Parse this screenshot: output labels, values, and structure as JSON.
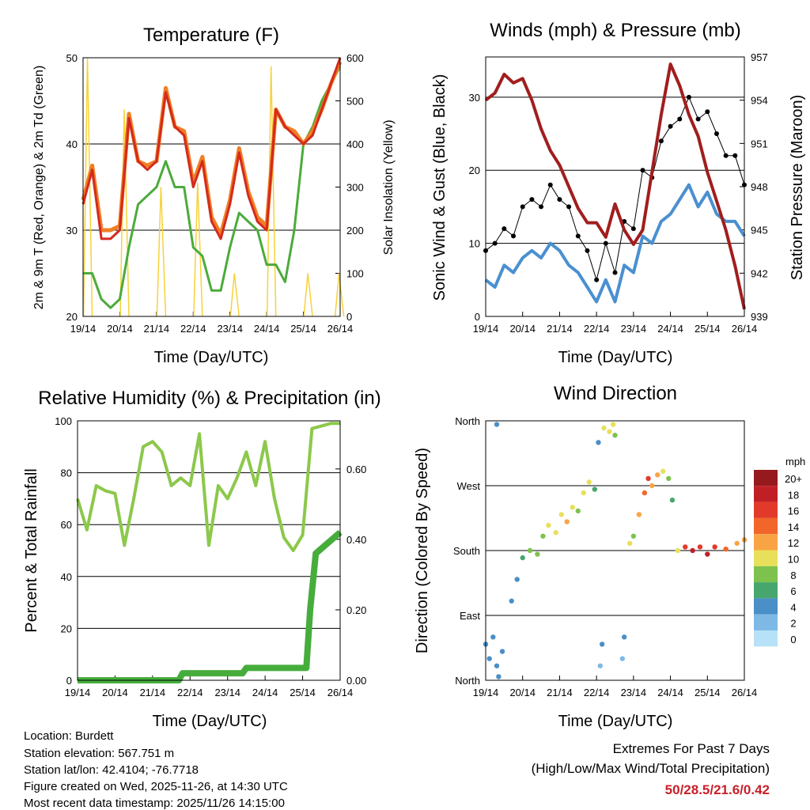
{
  "colors": {
    "temp2m": "#d42a1e",
    "temp9m": "#f07f24",
    "dewpoint": "#4bab3a",
    "solar": "#f7d23a",
    "sonic": "#4a90d0",
    "gust": "#000000",
    "pressure": "#a01e1e",
    "rh": "#8cc84b",
    "precip": "#46ad3c"
  },
  "x_ticks": [
    "19/14",
    "20/14",
    "21/14",
    "22/14",
    "23/14",
    "24/14",
    "25/14",
    "26/14"
  ],
  "chart_data": [
    {
      "id": "temperature",
      "type": "line",
      "title": "Temperature (F)",
      "xlabel": "Time (Day/UTC)",
      "ylabel": "2m & 9m T (Red, Orange) & 2m Td (Green)",
      "ylabel_right": "Solar Insolation (Yellow)",
      "xlim": [
        0,
        7
      ],
      "ylim": [
        20,
        50
      ],
      "ylim_right": [
        0,
        600
      ],
      "yticks": [
        20,
        30,
        40,
        50
      ],
      "yticks_right": [
        0,
        100,
        200,
        300,
        400,
        500,
        600
      ],
      "x": [
        0,
        0.25,
        0.5,
        0.75,
        1,
        1.25,
        1.5,
        1.75,
        2,
        2.25,
        2.5,
        2.75,
        3,
        3.25,
        3.5,
        3.75,
        4,
        4.25,
        4.5,
        4.75,
        5,
        5.25,
        5.5,
        5.75,
        6,
        6.25,
        6.5,
        6.75,
        7
      ],
      "series": [
        {
          "name": "2m T",
          "color_key": "temp2m",
          "values": [
            33,
            37,
            29,
            29,
            30,
            43,
            38,
            37,
            38,
            46,
            42,
            41,
            35,
            38,
            31,
            29,
            33,
            39,
            34,
            31,
            30,
            44,
            42,
            41,
            40,
            41,
            44,
            47,
            50
          ]
        },
        {
          "name": "9m T",
          "color_key": "temp9m",
          "values": [
            33.5,
            37.5,
            30,
            30,
            30.5,
            43.5,
            38,
            37.5,
            38,
            46.5,
            42,
            41.5,
            35.5,
            38.5,
            31.5,
            29.5,
            33.5,
            39.5,
            34.5,
            31.5,
            30.5,
            44,
            42,
            41.5,
            40,
            41.5,
            44,
            47,
            49.5
          ]
        },
        {
          "name": "2m Td",
          "color_key": "dewpoint",
          "values": [
            25,
            25,
            22,
            21,
            22,
            28,
            33,
            34,
            35,
            38,
            35,
            35,
            28,
            27,
            23,
            23,
            28,
            32,
            31,
            30,
            26,
            26,
            24,
            30,
            40,
            42,
            45,
            47,
            49
          ]
        }
      ],
      "solar_peaks": [
        {
          "day": 0.12,
          "value": 600
        },
        {
          "day": 1.12,
          "value": 480
        },
        {
          "day": 2.12,
          "value": 300
        },
        {
          "day": 3.12,
          "value": 310
        },
        {
          "day": 4.12,
          "value": 100
        },
        {
          "day": 5.12,
          "value": 580
        },
        {
          "day": 6.12,
          "value": 100
        },
        {
          "day": 6.97,
          "value": 100
        }
      ]
    },
    {
      "id": "winds",
      "type": "scatter",
      "title": "Winds (mph) & Pressure (mb)",
      "xlabel": "Time (Day/UTC)",
      "ylabel": "Sonic Wind & Gust (Blue, Black)",
      "ylabel_right": "Station Pressure (Maroon)",
      "xlim": [
        0,
        7
      ],
      "ylim": [
        0,
        35.5
      ],
      "ylim_right": [
        939,
        957
      ],
      "yticks": [
        0,
        10,
        20,
        30
      ],
      "yticks_right": [
        939,
        942,
        945,
        948,
        951,
        954,
        957
      ],
      "x": [
        0,
        0.25,
        0.5,
        0.75,
        1,
        1.25,
        1.5,
        1.75,
        2,
        2.25,
        2.5,
        2.75,
        3,
        3.25,
        3.5,
        3.75,
        4,
        4.25,
        4.5,
        4.75,
        5,
        5.25,
        5.5,
        5.75,
        6,
        6.25,
        6.5,
        6.75,
        7
      ],
      "series": [
        {
          "name": "Sonic Wind",
          "color_key": "sonic",
          "values": [
            5,
            4,
            7,
            6,
            8,
            9,
            8,
            10,
            9,
            7,
            6,
            4,
            2,
            5,
            2,
            7,
            6,
            11,
            10,
            13,
            14,
            16,
            18,
            15,
            17,
            14,
            13,
            13,
            11
          ]
        },
        {
          "name": "Gust",
          "color_key": "gust",
          "values": [
            9,
            10,
            12,
            11,
            15,
            16,
            15,
            18,
            16,
            15,
            11,
            9,
            5,
            10,
            6,
            13,
            12,
            20,
            19,
            24,
            26,
            27,
            30,
            27,
            28,
            25,
            22,
            22,
            18
          ]
        },
        {
          "name": "Pressure",
          "color_key": "pressure",
          "axis": "right",
          "values": [
            954,
            954.5,
            955.8,
            955.2,
            955.5,
            954,
            952,
            950.5,
            949.5,
            948,
            946.5,
            945.5,
            945.5,
            944.5,
            946.8,
            945,
            944,
            945,
            949,
            953,
            956.5,
            955,
            953,
            951.5,
            949,
            947,
            945,
            942.5,
            939.5
          ]
        }
      ]
    },
    {
      "id": "humidity",
      "type": "line",
      "title": "Relative Humidity (%) & Precipitation (in)",
      "xlabel": "Time (Day/UTC)",
      "ylabel": "Percent & Total Rainfall",
      "xlim": [
        0,
        7
      ],
      "ylim": [
        0,
        100
      ],
      "ylim_right": [
        0,
        0.7366
      ],
      "yticks": [
        0,
        20,
        40,
        60,
        80,
        100
      ],
      "yticks_right": [
        "0.00",
        "0.20",
        "0.40",
        "0.60"
      ],
      "series": [
        {
          "name": "Relative Humidity",
          "color_key": "rh",
          "x": [
            0,
            0.25,
            0.5,
            0.75,
            1,
            1.25,
            1.5,
            1.75,
            2,
            2.25,
            2.5,
            2.75,
            3,
            3.25,
            3.5,
            3.75,
            4,
            4.25,
            4.5,
            4.75,
            5,
            5.25,
            5.5,
            5.75,
            6,
            6.25,
            6.5,
            6.75,
            7
          ],
          "values": [
            70,
            58,
            75,
            73,
            72,
            52,
            70,
            90,
            92,
            88,
            75,
            78,
            75,
            95,
            52,
            75,
            70,
            78,
            88,
            75,
            92,
            70,
            55,
            50,
            56,
            97,
            98,
            99,
            99
          ]
        },
        {
          "name": "Total Precipitation",
          "color_key": "precip",
          "axis": "right",
          "x": [
            0,
            2.7,
            2.8,
            4.4,
            4.5,
            6.1,
            6.2,
            6.35,
            7
          ],
          "values": [
            0,
            0,
            0.02,
            0.02,
            0.035,
            0.035,
            0.2,
            0.36,
            0.42
          ]
        }
      ]
    },
    {
      "id": "wind_direction",
      "type": "scatter",
      "title": "Wind Direction",
      "xlabel": "Time (Day/UTC)",
      "ylabel": "Direction (Colored By Speed)",
      "xlim": [
        0,
        7
      ],
      "ylim": [
        0,
        360
      ],
      "yticks": [
        {
          "v": 0,
          "label": "North"
        },
        {
          "v": 90,
          "label": "East"
        },
        {
          "v": 180,
          "label": "South"
        },
        {
          "v": 270,
          "label": "West"
        },
        {
          "v": 360,
          "label": "North"
        }
      ],
      "legend": {
        "title": "mph",
        "labels": [
          "20+",
          "18",
          "16",
          "14",
          "12",
          "10",
          "8",
          "6",
          "4",
          "2",
          "0"
        ],
        "colors": [
          "#961a1d",
          "#c11f26",
          "#e23a2a",
          "#f2662a",
          "#f9a444",
          "#e8e05a",
          "#7cc24d",
          "#47a66d",
          "#4a8fc7",
          "#7eb9e6",
          "#b7e1f7"
        ],
        "placement": "right"
      },
      "points": [
        [
          0,
          50,
          4
        ],
        [
          0.1,
          30,
          4
        ],
        [
          0.2,
          60,
          4
        ],
        [
          0.3,
          20,
          3
        ],
        [
          0.35,
          5,
          4
        ],
        [
          0.3,
          355,
          4
        ],
        [
          0.45,
          40,
          4
        ],
        [
          0.7,
          110,
          4
        ],
        [
          0.85,
          140,
          4
        ],
        [
          1,
          170,
          6
        ],
        [
          1.2,
          180,
          8
        ],
        [
          1.4,
          175,
          8
        ],
        [
          1.55,
          200,
          8
        ],
        [
          1.7,
          215,
          10
        ],
        [
          1.9,
          205,
          10
        ],
        [
          2.05,
          230,
          10
        ],
        [
          2.2,
          220,
          12
        ],
        [
          2.35,
          240,
          10
        ],
        [
          2.5,
          235,
          8
        ],
        [
          2.65,
          260,
          10
        ],
        [
          2.8,
          275,
          10
        ],
        [
          2.95,
          265,
          6
        ],
        [
          3.05,
          330,
          4
        ],
        [
          3.2,
          350,
          10
        ],
        [
          3.35,
          345,
          10
        ],
        [
          3.45,
          355,
          10
        ],
        [
          3.5,
          340,
          8
        ],
        [
          3.1,
          20,
          2
        ],
        [
          3.15,
          50,
          4
        ],
        [
          3.7,
          30,
          2
        ],
        [
          3.75,
          60,
          4
        ],
        [
          3.9,
          190,
          10
        ],
        [
          4.0,
          200,
          8
        ],
        [
          4.15,
          230,
          12
        ],
        [
          4.3,
          260,
          14
        ],
        [
          4.4,
          280,
          16
        ],
        [
          4.5,
          270,
          12
        ],
        [
          4.65,
          285,
          12
        ],
        [
          4.8,
          290,
          10
        ],
        [
          4.95,
          280,
          8
        ],
        [
          5.05,
          250,
          6
        ],
        [
          5.2,
          180,
          10
        ],
        [
          5.4,
          185,
          16
        ],
        [
          5.6,
          180,
          18
        ],
        [
          5.8,
          185,
          16
        ],
        [
          6.0,
          175,
          18
        ],
        [
          6.2,
          185,
          16
        ],
        [
          6.5,
          182,
          14
        ],
        [
          6.8,
          190,
          12
        ],
        [
          7,
          195,
          12
        ]
      ]
    }
  ],
  "footer": {
    "location": "Location: Burdett",
    "elevation": "Station elevation: 567.751 m",
    "latlon": "Station lat/lon: 42.4104; -76.7718",
    "created": "Figure created on Wed, 2025-11-26, at 14:30 UTC",
    "latest": "Most recent data timestamp: 2025/11/26 14:15:00"
  },
  "extremes": {
    "heading": "Extremes For Past 7 Days",
    "subheading": "(High/Low/Max Wind/Total Precipitation)",
    "values": "50/28.5/21.6/0.42"
  }
}
